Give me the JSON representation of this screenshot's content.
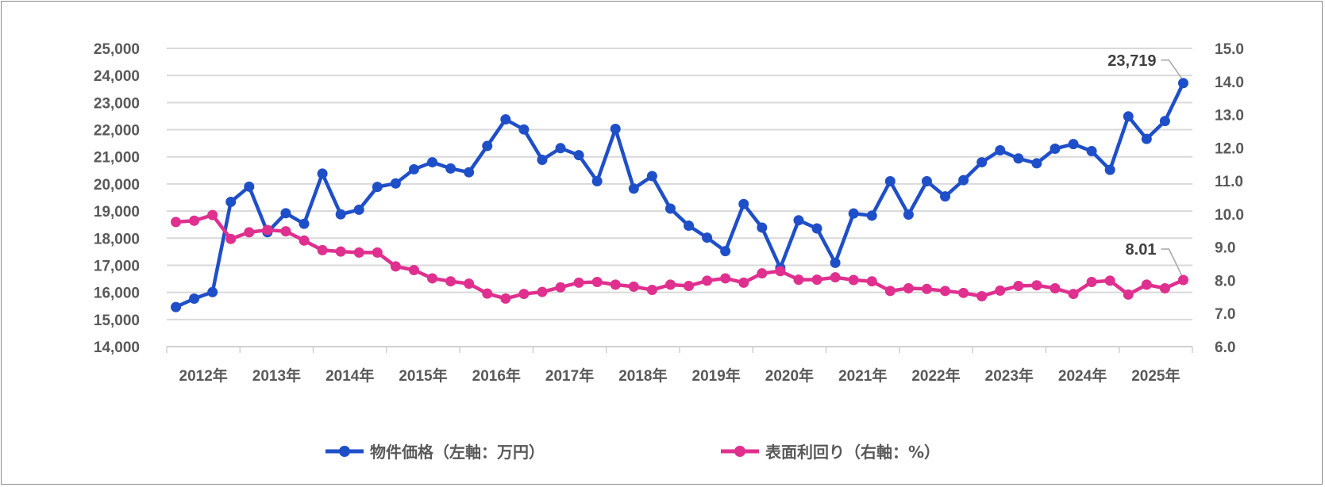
{
  "chart_data": {
    "type": "line",
    "title": "",
    "x_tick_labels": [
      "2012年",
      "2013年",
      "2014年",
      "2015年",
      "2016年",
      "2017年",
      "2018年",
      "2019年",
      "2020年",
      "2021年",
      "2022年",
      "2023年",
      "2024年",
      "2025年"
    ],
    "points_per_year": 4,
    "left_axis": {
      "ylim": [
        14000,
        25000
      ],
      "step": 1000,
      "tick_labels": [
        "14,000",
        "15,000",
        "16,000",
        "17,000",
        "18,000",
        "19,000",
        "20,000",
        "21,000",
        "22,000",
        "23,000",
        "24,000",
        "25,000"
      ]
    },
    "right_axis": {
      "ylim": [
        6.0,
        15.0
      ],
      "step": 1.0,
      "tick_labels": [
        "6.0",
        "7.0",
        "8.0",
        "9.0",
        "10.0",
        "11.0",
        "12.0",
        "13.0",
        "14.0",
        "15.0"
      ]
    },
    "grid": true,
    "legend_position": "bottom",
    "series": [
      {
        "name": "物件価格（左軸：万円）",
        "axis": "left",
        "color": "#1f4fc8",
        "values": [
          15460,
          15770,
          16010,
          19340,
          19900,
          18220,
          18920,
          18530,
          20380,
          18880,
          19050,
          19890,
          20020,
          20540,
          20800,
          20570,
          20430,
          21400,
          22380,
          22010,
          20890,
          21320,
          21060,
          20100,
          22030,
          19830,
          20290,
          19090,
          18460,
          18020,
          17520,
          19260,
          18390,
          16900,
          18660,
          18360,
          17090,
          18910,
          18830,
          20100,
          18870,
          20100,
          19540,
          20140,
          20800,
          21240,
          20940,
          20760,
          21300,
          21470,
          21210,
          20520,
          22490,
          21660,
          22320,
          23719
        ],
        "last_label": "23,719"
      },
      {
        "name": "表面利回り（右軸：%）",
        "axis": "right",
        "color": "#e0308f",
        "values": [
          9.76,
          9.8,
          9.97,
          9.25,
          9.45,
          9.52,
          9.48,
          9.2,
          8.91,
          8.87,
          8.84,
          8.84,
          8.42,
          8.31,
          8.06,
          7.97,
          7.9,
          7.6,
          7.45,
          7.59,
          7.65,
          7.79,
          7.93,
          7.95,
          7.87,
          7.81,
          7.71,
          7.87,
          7.83,
          7.99,
          8.06,
          7.93,
          8.21,
          8.28,
          8.02,
          8.02,
          8.09,
          8.01,
          7.97,
          7.68,
          7.76,
          7.74,
          7.68,
          7.62,
          7.52,
          7.69,
          7.83,
          7.85,
          7.76,
          7.59,
          7.95,
          7.99,
          7.57,
          7.87,
          7.76,
          8.01
        ],
        "last_label": "8.01"
      }
    ]
  }
}
